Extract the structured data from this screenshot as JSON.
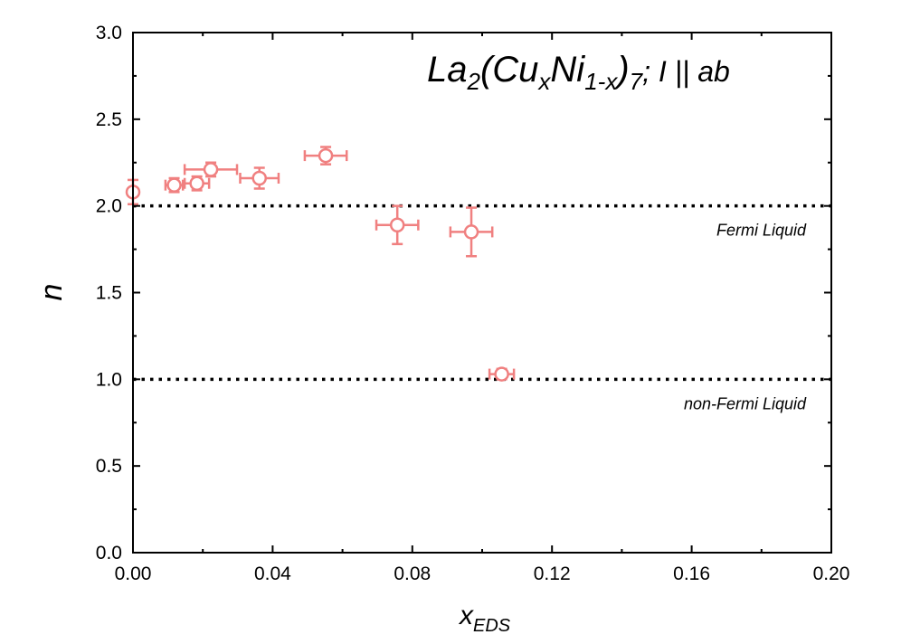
{
  "chart_data": {
    "type": "scatter",
    "title_parts": {
      "t1": "La",
      "t2": "2",
      "t3": "(Cu",
      "t4": "x",
      "t5": "Ni",
      "t6": "1-x",
      "t7": ")",
      "t8": "7",
      "t9": "; I || ab"
    },
    "xlabel_main": "x",
    "xlabel_sub": "EDS",
    "ylabel": "n",
    "xlim": [
      0.0,
      0.2
    ],
    "ylim": [
      0.0,
      3.0
    ],
    "x_ticks": [
      "0.00",
      "0.04",
      "0.08",
      "0.12",
      "0.16",
      "0.20"
    ],
    "y_ticks": [
      "0.0",
      "0.5",
      "1.0",
      "1.5",
      "2.0",
      "2.5",
      "3.0"
    ],
    "grid": false,
    "marker_color": "#f08080",
    "reference_lines": [
      {
        "y": 2.0,
        "label": "Fermi Liquid"
      },
      {
        "y": 1.0,
        "label": "non-Fermi Liquid"
      }
    ],
    "points": [
      {
        "x": 0.0,
        "y": 2.08,
        "xerr": 0.0,
        "yerr": 0.07
      },
      {
        "x": 0.0118,
        "y": 2.12,
        "xerr": 0.0025,
        "yerr": 0.04
      },
      {
        "x": 0.0183,
        "y": 2.13,
        "xerr": 0.0035,
        "yerr": 0.04
      },
      {
        "x": 0.0223,
        "y": 2.21,
        "xerr": 0.0075,
        "yerr": 0.04
      },
      {
        "x": 0.0362,
        "y": 2.16,
        "xerr": 0.0055,
        "yerr": 0.06
      },
      {
        "x": 0.0552,
        "y": 2.29,
        "xerr": 0.006,
        "yerr": 0.05
      },
      {
        "x": 0.0757,
        "y": 1.89,
        "xerr": 0.006,
        "yerr": 0.11
      },
      {
        "x": 0.0969,
        "y": 1.85,
        "xerr": 0.006,
        "yerr": 0.14
      },
      {
        "x": 0.1056,
        "y": 1.03,
        "xerr": 0.0035,
        "yerr": 0.03
      }
    ]
  }
}
